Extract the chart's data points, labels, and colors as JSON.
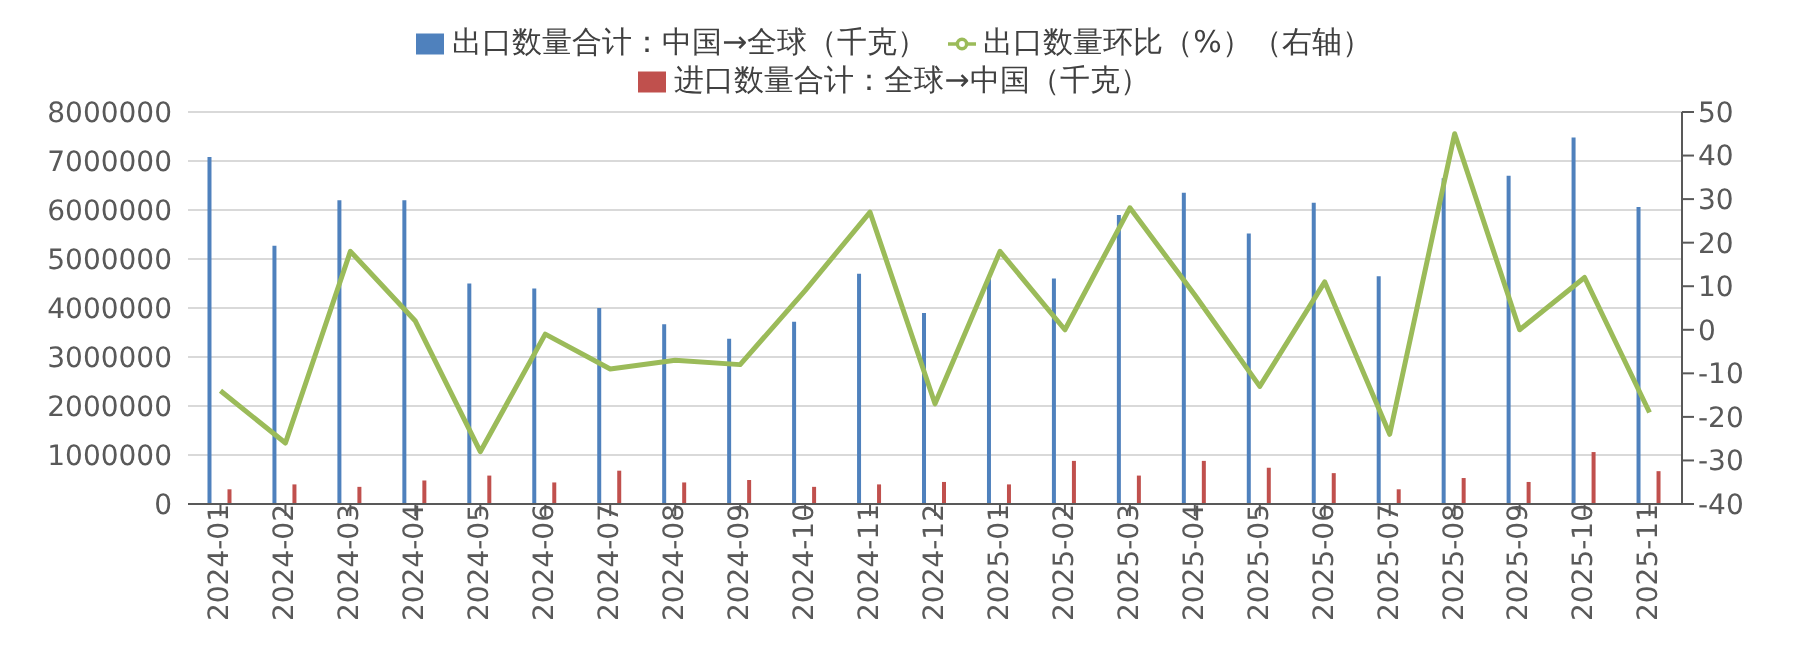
{
  "chart_data": {
    "type": "bar",
    "categories": [
      "2024-01",
      "2024-02",
      "2024-03",
      "2024-04",
      "2024-05",
      "2024-06",
      "2024-07",
      "2024-08",
      "2024-09",
      "2024-10",
      "2024-11",
      "2024-12",
      "2025-01",
      "2025-02",
      "2025-03",
      "2025-04",
      "2025-05",
      "2025-06",
      "2025-07",
      "2025-08",
      "2025-09",
      "2025-10",
      "2025-11"
    ],
    "series": [
      {
        "name": "出口数量合计：中国→全球（千克）",
        "color": "#4f81bd",
        "values": [
          7080000,
          5270000,
          6200000,
          6200000,
          4500000,
          4400000,
          4000000,
          3670000,
          3370000,
          3720000,
          4700000,
          3900000,
          4600000,
          4600000,
          5900000,
          6350000,
          5520000,
          6150000,
          4650000,
          6650000,
          6700000,
          7480000,
          6060000
        ]
      },
      {
        "name": "进口数量合计：全球→中国（千克）",
        "color": "#c0504d",
        "values": [
          300000,
          400000,
          350000,
          480000,
          580000,
          440000,
          680000,
          440000,
          490000,
          350000,
          400000,
          450000,
          400000,
          880000,
          580000,
          880000,
          740000,
          630000,
          300000,
          530000,
          450000,
          1060000,
          670000
        ]
      },
      {
        "name": "出口数量环比（%）（右轴）",
        "color": "#9bbb59",
        "type": "line",
        "axis": "y2",
        "values": [
          -14,
          -26,
          18,
          2,
          -28,
          -1,
          -9,
          -7,
          -8,
          9,
          27,
          -17,
          18,
          0,
          28,
          8,
          -13,
          11,
          -24,
          45,
          0,
          12,
          -19
        ]
      }
    ],
    "ylim": [
      0,
      8000000
    ],
    "yticks": [
      0,
      1000000,
      2000000,
      3000000,
      4000000,
      5000000,
      6000000,
      7000000,
      8000000
    ],
    "y2lim": [
      -40,
      50
    ],
    "y2ticks": [
      -40,
      -30,
      -20,
      -10,
      0,
      10,
      20,
      30,
      40,
      50
    ],
    "grid": "y",
    "legend": "top",
    "marker": "none"
  }
}
